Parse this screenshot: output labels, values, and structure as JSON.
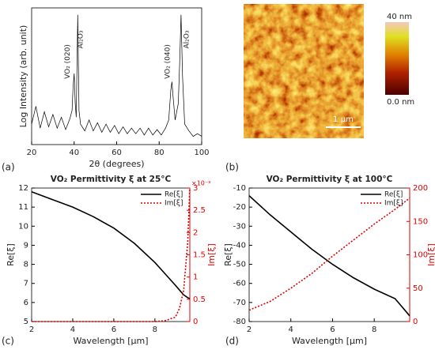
{
  "chart_data": [
    {
      "type": "line",
      "panel_label": "(a)",
      "xlabel": "2θ (degrees)",
      "ylabel": "Log Intensity (arb. unit)",
      "xlim": [
        20,
        100
      ],
      "xticks": [
        20,
        40,
        60,
        80,
        100
      ],
      "ylim": [
        0,
        1
      ],
      "annotations": [
        "VO₂ (020)",
        "Al₂O₃",
        "VO₂ (040)",
        "Al₂O₃"
      ],
      "x": [
        20,
        22,
        24,
        26,
        28,
        30,
        32,
        34,
        36,
        38,
        39,
        39.5,
        40,
        40.5,
        41,
        41.7,
        42.3,
        43,
        45,
        47,
        49,
        51,
        53,
        55,
        57,
        59,
        61,
        63,
        65,
        67,
        69,
        71,
        73,
        75,
        77,
        79,
        81,
        83,
        84.5,
        85.5,
        86,
        86.5,
        87.5,
        89,
        89.7,
        90.3,
        91,
        92,
        94,
        96,
        98,
        100
      ],
      "series": [
        {
          "color": "#000000",
          "values": [
            0.15,
            0.28,
            0.12,
            0.24,
            0.13,
            0.22,
            0.12,
            0.2,
            0.11,
            0.19,
            0.25,
            0.42,
            0.52,
            0.3,
            0.2,
            0.95,
            0.25,
            0.15,
            0.1,
            0.18,
            0.1,
            0.16,
            0.09,
            0.15,
            0.09,
            0.14,
            0.08,
            0.13,
            0.08,
            0.12,
            0.08,
            0.12,
            0.07,
            0.12,
            0.07,
            0.11,
            0.07,
            0.12,
            0.18,
            0.4,
            0.46,
            0.36,
            0.18,
            0.3,
            0.62,
            0.95,
            0.5,
            0.15,
            0.1,
            0.06,
            0.08,
            0.06
          ]
        }
      ]
    },
    {
      "type": "image",
      "panel_label": "(b)",
      "colorbar_labels": [
        "40 nm",
        "0.0 nm"
      ],
      "scale_bar": "1 μm"
    },
    {
      "type": "line",
      "panel_label": "(c)",
      "title": "VO₂ Permittivity ξ at 25°C",
      "xlabel": "Wavelength [μm]",
      "ylabel": "Re[ξ]",
      "y2label": "Im[ξ]",
      "y2_multiplier": "×10⁻³",
      "xlim": [
        2,
        9.7
      ],
      "xticks": [
        2,
        4,
        6,
        8
      ],
      "ylim": [
        5,
        12
      ],
      "yticks": [
        5,
        6,
        7,
        8,
        9,
        10,
        11,
        12
      ],
      "y2lim": [
        0,
        3
      ],
      "y2ticks": [
        0,
        0.5,
        1,
        1.5,
        2,
        2.5,
        3
      ],
      "x": [
        2,
        3,
        4,
        5,
        6,
        7,
        8,
        8.5,
        9,
        9.2,
        9.4,
        9.6,
        9.7
      ],
      "series": [
        {
          "name": "Re[ξ]",
          "color": "#000000",
          "values": [
            11.8,
            11.4,
            11.0,
            10.5,
            9.9,
            9.1,
            8.1,
            7.5,
            6.9,
            6.65,
            6.4,
            6.25,
            6.2
          ]
        },
        {
          "name": "Im[ξ]",
          "color": "#e00000",
          "axis": "y2",
          "values": [
            0,
            0,
            0,
            0,
            0,
            0,
            0,
            0.02,
            0.1,
            0.3,
            0.7,
            1.8,
            3
          ]
        }
      ]
    },
    {
      "type": "line",
      "panel_label": "(d)",
      "title": "VO₂ Permittivity ξ at 100°C",
      "xlabel": "Wavelength [μm]",
      "ylabel": "Re[ξ]",
      "y2label": "Im[ξ]",
      "xlim": [
        2,
        9.7
      ],
      "xticks": [
        2,
        4,
        6,
        8
      ],
      "ylim": [
        -80,
        -10
      ],
      "yticks": [
        -80,
        -70,
        -60,
        -50,
        -40,
        -30,
        -20,
        -10
      ],
      "y2lim": [
        0,
        200
      ],
      "y2ticks": [
        0,
        50,
        100,
        150,
        200
      ],
      "x": [
        2,
        3,
        4,
        5,
        6,
        7,
        8,
        9,
        9.7
      ],
      "series": [
        {
          "name": "Re[ξ]",
          "color": "#000000",
          "values": [
            -14,
            -24,
            -33,
            -42,
            -50,
            -57,
            -63,
            -68,
            -77
          ]
        },
        {
          "name": "Im[ξ]",
          "color": "#e00000",
          "axis": "y2",
          "values": [
            17,
            30,
            50,
            72,
            98,
            122,
            146,
            168,
            185
          ]
        }
      ]
    }
  ]
}
